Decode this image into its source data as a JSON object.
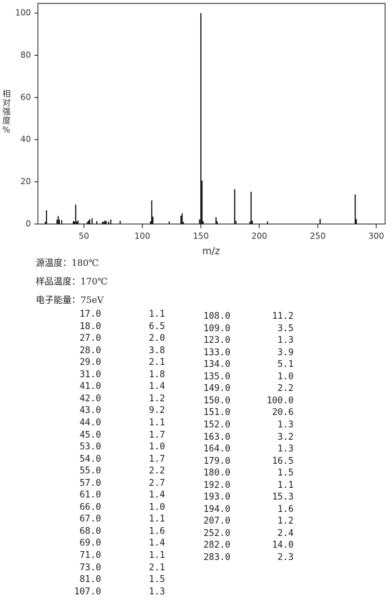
{
  "chart_data": {
    "type": "bar",
    "ylabel": "相对强度%",
    "xlabel": "m/z",
    "x": [
      17,
      18,
      27,
      28,
      29,
      31,
      41,
      42,
      43,
      44,
      45,
      53,
      54,
      55,
      57,
      61,
      66,
      67,
      68,
      69,
      71,
      73,
      81,
      107,
      108,
      109,
      123,
      133,
      134,
      135,
      149,
      150,
      151,
      152,
      163,
      164,
      179,
      180,
      192,
      193,
      194,
      207,
      252,
      282,
      283
    ],
    "values": [
      1.1,
      6.5,
      2.0,
      3.8,
      2.1,
      1.8,
      1.4,
      1.2,
      9.2,
      1.1,
      1.7,
      1.0,
      1.7,
      2.2,
      2.7,
      1.4,
      1.0,
      1.1,
      1.6,
      1.4,
      1.1,
      2.1,
      1.5,
      1.3,
      11.2,
      3.5,
      1.3,
      3.9,
      5.1,
      1.0,
      2.2,
      100.0,
      20.6,
      1.3,
      3.2,
      1.3,
      16.5,
      1.5,
      1.1,
      15.3,
      1.6,
      1.2,
      2.4,
      14.0,
      2.3
    ],
    "color": "#000000",
    "xlim": [
      10.6,
      307.6
    ],
    "xticks": [
      50,
      100,
      150,
      200,
      250,
      300
    ],
    "ylim": [
      0,
      104.6
    ],
    "yticks": [
      0,
      20,
      40,
      60,
      80,
      100
    ]
  },
  "info": [
    "源温度：180℃",
    "样品温度：170℃",
    "电子能量：75eV"
  ],
  "table": {
    "rows": [
      [
        "17.0",
        "1.1"
      ],
      [
        "18.0",
        "6.5"
      ],
      [
        "27.0",
        "2.0"
      ],
      [
        "28.0",
        "3.8"
      ],
      [
        "29.0",
        "2.1"
      ],
      [
        "31.0",
        "1.8"
      ],
      [
        "41.0",
        "1.4"
      ],
      [
        "42.0",
        "1.2"
      ],
      [
        "43.0",
        "9.2"
      ],
      [
        "44.0",
        "1.1"
      ],
      [
        "45.0",
        "1.7"
      ],
      [
        "53.0",
        "1.0"
      ],
      [
        "54.0",
        "1.7"
      ],
      [
        "55.0",
        "2.2"
      ],
      [
        "57.0",
        "2.7"
      ],
      [
        "61.0",
        "1.4"
      ],
      [
        "66.0",
        "1.0"
      ],
      [
        "67.0",
        "1.1"
      ],
      [
        "68.0",
        "1.6"
      ],
      [
        "69.0",
        "1.4"
      ],
      [
        "71.0",
        "1.1"
      ],
      [
        "73.0",
        "2.1"
      ],
      [
        "81.0",
        "1.5"
      ],
      [
        "107.0",
        "1.3"
      ],
      [
        "108.0",
        "11.2"
      ],
      [
        "109.0",
        "3.5"
      ],
      [
        "123.0",
        "1.3"
      ],
      [
        "133.0",
        "3.9"
      ],
      [
        "134.0",
        "5.1"
      ],
      [
        "135.0",
        "1.0"
      ],
      [
        "149.0",
        "2.2"
      ],
      [
        "150.0",
        "100.0"
      ],
      [
        "151.0",
        "20.6"
      ],
      [
        "152.0",
        "1.3"
      ],
      [
        "163.0",
        "3.2"
      ],
      [
        "164.0",
        "1.3"
      ],
      [
        "179.0",
        "16.5"
      ],
      [
        "180.0",
        "1.5"
      ],
      [
        "192.0",
        "1.1"
      ],
      [
        "193.0",
        "15.3"
      ],
      [
        "194.0",
        "1.6"
      ],
      [
        "207.0",
        "1.2"
      ],
      [
        "252.0",
        "2.4"
      ],
      [
        "282.0",
        "14.0"
      ],
      [
        "283.0",
        "2.3"
      ]
    ]
  }
}
